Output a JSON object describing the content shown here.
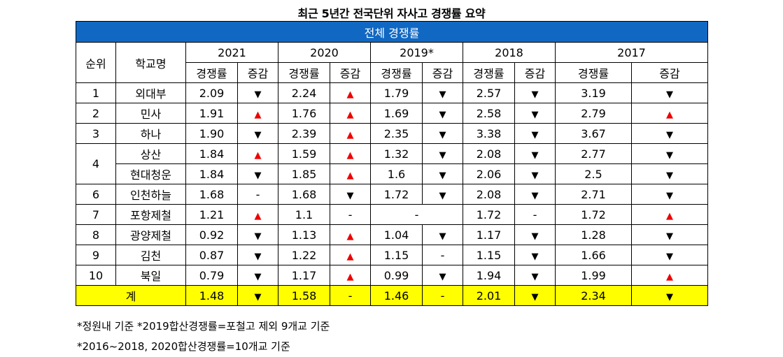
{
  "title": "최근 5년간 전국단위 자사고 경쟁률 요약",
  "banner": "전체 경쟁률",
  "headers": {
    "rank": "순위",
    "school": "학교명",
    "years": [
      "2021",
      "2020",
      "2019*",
      "2018",
      "2017"
    ],
    "rate": "경쟁률",
    "change": "증감"
  },
  "markers": {
    "up": "▲",
    "down": "▼",
    "none": "-"
  },
  "colors": {
    "banner": "#1168c3",
    "up": "#ee0000",
    "total_row": "#ffff00"
  },
  "rows": [
    {
      "rank": "1",
      "school": "외대부",
      "cells": [
        [
          "2.09",
          "down"
        ],
        [
          "2.24",
          "up"
        ],
        [
          "1.79",
          "down"
        ],
        [
          "2.57",
          "down"
        ],
        [
          "3.19",
          "down"
        ]
      ]
    },
    {
      "rank": "2",
      "school": "민사",
      "cells": [
        [
          "1.91",
          "up"
        ],
        [
          "1.76",
          "up"
        ],
        [
          "1.69",
          "down"
        ],
        [
          "2.58",
          "down"
        ],
        [
          "2.79",
          "up"
        ]
      ]
    },
    {
      "rank": "3",
      "school": "하나",
      "cells": [
        [
          "1.90",
          "down"
        ],
        [
          "2.39",
          "up"
        ],
        [
          "2.35",
          "down"
        ],
        [
          "3.38",
          "down"
        ],
        [
          "3.67",
          "down"
        ]
      ]
    },
    {
      "rank": "4",
      "rank_rowspan": 2,
      "school": "상산",
      "cells": [
        [
          "1.84",
          "up"
        ],
        [
          "1.59",
          "up"
        ],
        [
          "1.32",
          "down"
        ],
        [
          "2.08",
          "down"
        ],
        [
          "2.77",
          "down"
        ]
      ]
    },
    {
      "rank_merged": true,
      "school": "현대청운",
      "cells": [
        [
          "1.84",
          "down"
        ],
        [
          "1.85",
          "up"
        ],
        [
          "1.6",
          "down"
        ],
        [
          "2.06",
          "down"
        ],
        [
          "2.5",
          "down"
        ]
      ]
    },
    {
      "rank": "6",
      "school": "인천하늘",
      "cells": [
        [
          "1.68",
          "none"
        ],
        [
          "1.68",
          "down"
        ],
        [
          "1.72",
          "down"
        ],
        [
          "2.08",
          "down"
        ],
        [
          "2.71",
          "down"
        ]
      ]
    },
    {
      "rank": "7",
      "school": "포항제철",
      "cells": [
        [
          "1.21",
          "up"
        ],
        [
          "1.1",
          "none"
        ],
        [
          "merged",
          "-"
        ],
        [
          "1.72",
          "none"
        ],
        [
          "1.72",
          "up"
        ]
      ]
    },
    {
      "rank": "8",
      "school": "광양제철",
      "cells": [
        [
          "0.92",
          "down"
        ],
        [
          "1.13",
          "up"
        ],
        [
          "1.04",
          "down"
        ],
        [
          "1.17",
          "down"
        ],
        [
          "1.28",
          "down"
        ]
      ]
    },
    {
      "rank": "9",
      "school": "김천",
      "cells": [
        [
          "0.87",
          "down"
        ],
        [
          "1.22",
          "up"
        ],
        [
          "1.15",
          "none"
        ],
        [
          "1.15",
          "down"
        ],
        [
          "1.66",
          "down"
        ]
      ]
    },
    {
      "rank": "10",
      "school": "북일",
      "cells": [
        [
          "0.79",
          "down"
        ],
        [
          "1.17",
          "up"
        ],
        [
          "0.99",
          "down"
        ],
        [
          "1.94",
          "down"
        ],
        [
          "1.99",
          "up"
        ]
      ]
    }
  ],
  "total": {
    "label": "계",
    "cells": [
      [
        "1.48",
        "down"
      ],
      [
        "1.58",
        "none"
      ],
      [
        "1.46",
        "none"
      ],
      [
        "2.01",
        "down"
      ],
      [
        "2.34",
        "down"
      ]
    ]
  },
  "notes": [
    "*정원내 기준 *2019합산경쟁률=포철고 제외 9개교 기준",
    "*2016~2018, 2020합산경쟁률=10개교 기준"
  ]
}
